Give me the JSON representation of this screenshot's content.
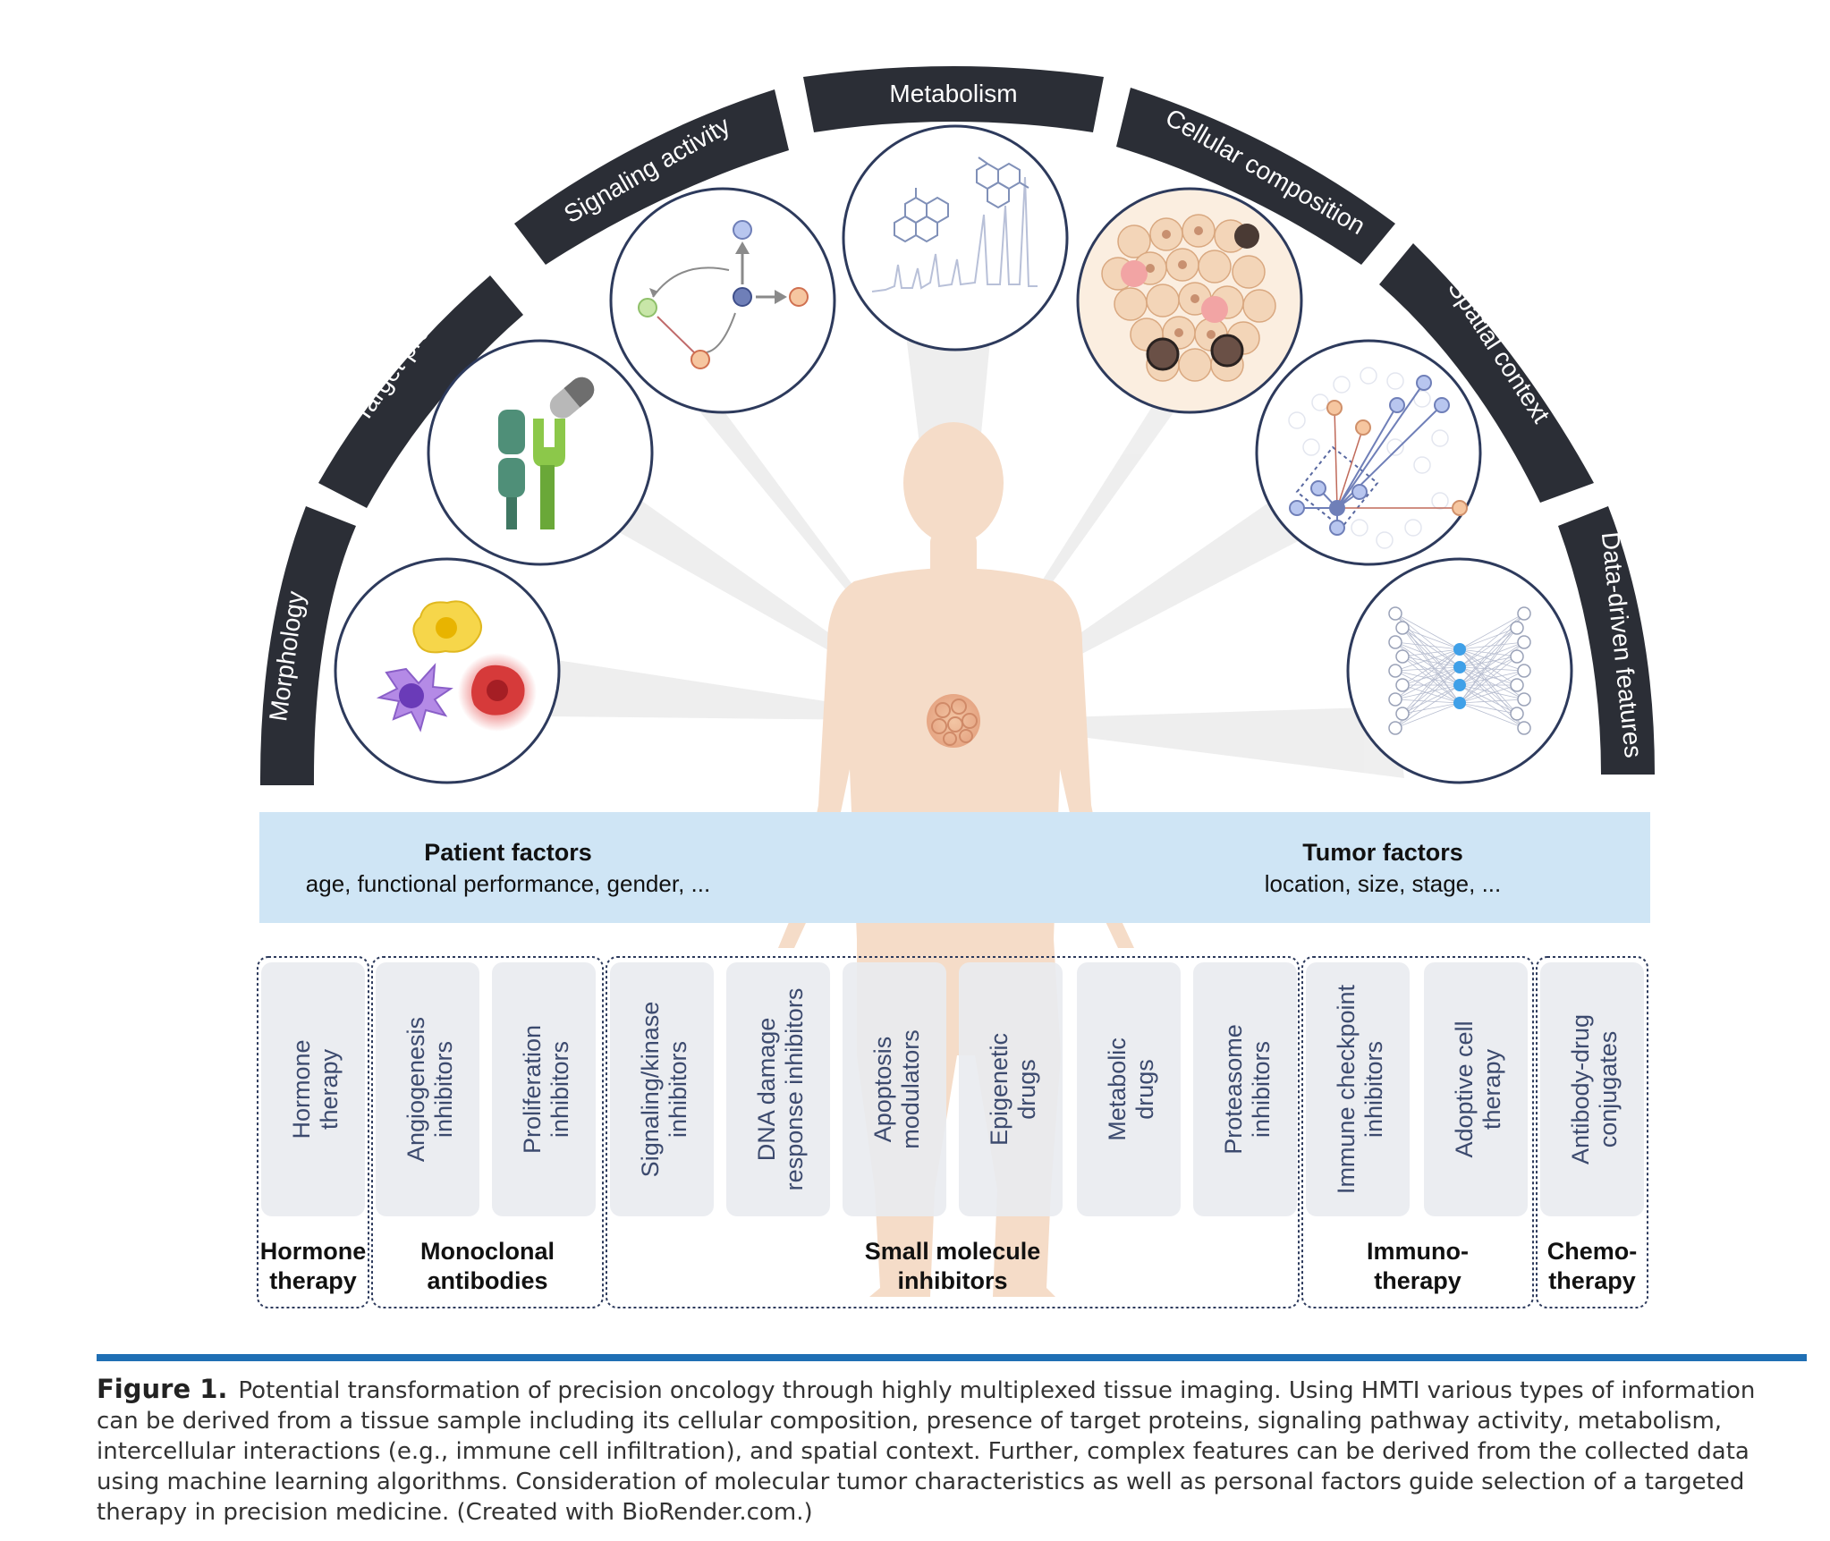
{
  "arc_labels": {
    "morphology": "Morphology",
    "target_proteins": "Target proteins",
    "signaling": "Signaling activity",
    "metabolism": "Metabolism",
    "cellular": "Cellular composition",
    "spatial": "Spatial context",
    "data_driven": "Data-driven features"
  },
  "factors": {
    "patient_title": "Patient factors",
    "patient_text": "age, functional performance, gender, ...",
    "tumor_title": "Tumor factors",
    "tumor_text": "location, size, stage, ..."
  },
  "therapies": [
    {
      "l1": "Hormone",
      "l2": "therapy"
    },
    {
      "l1": "Angiogenesis",
      "l2": "inhibitors"
    },
    {
      "l1": "Proliferation",
      "l2": "inhibitors"
    },
    {
      "l1": "Signaling/kinase",
      "l2": "inhibitors"
    },
    {
      "l1": "DNA damage",
      "l2": "response inhibitors"
    },
    {
      "l1": "Apoptosis",
      "l2": "modulators"
    },
    {
      "l1": "Epigenetic",
      "l2": "drugs"
    },
    {
      "l1": "Metabolic",
      "l2": "drugs"
    },
    {
      "l1": "Proteasome",
      "l2": "inhibitors"
    },
    {
      "l1": "Immune checkpoint",
      "l2": "inhibitors"
    },
    {
      "l1": "Adoptive cell",
      "l2": "therapy"
    },
    {
      "l1": "Antibody-drug",
      "l2": "conjugates"
    }
  ],
  "groups": [
    {
      "l1": "Hormone",
      "l2": "therapy"
    },
    {
      "l1": "Monoclonal",
      "l2": "antibodies"
    },
    {
      "l1": "Small molecule",
      "l2": "inhibitors"
    },
    {
      "l1": "Immuno-",
      "l2": "therapy"
    },
    {
      "l1": "Chemo-",
      "l2": "therapy"
    }
  ],
  "caption": {
    "label": "Figure 1.",
    "text": "Potential transformation of precision oncology through highly multiplexed tissue imaging. Using HMTI various types of information can be derived from a tissue sample including its cellular composition, presence of target proteins, signaling pathway activity, metabolism, intercellular interactions (e.g., immune cell infiltration), and spatial context. Further, complex features can be derived from the collected data using machine learning algorithms. Consideration of molecular tumor characteristics as well as personal factors guide selection of a targeted therapy in precision medicine. (Created with BioRender.com.)"
  },
  "colors": {
    "arc": "#2b2e36",
    "band": "#cfe5f5",
    "body": "#f5dcc8",
    "rule": "#1f6fb4",
    "therapy_text": "#3c4a6e",
    "therapy_box": "#e9ebf0"
  }
}
